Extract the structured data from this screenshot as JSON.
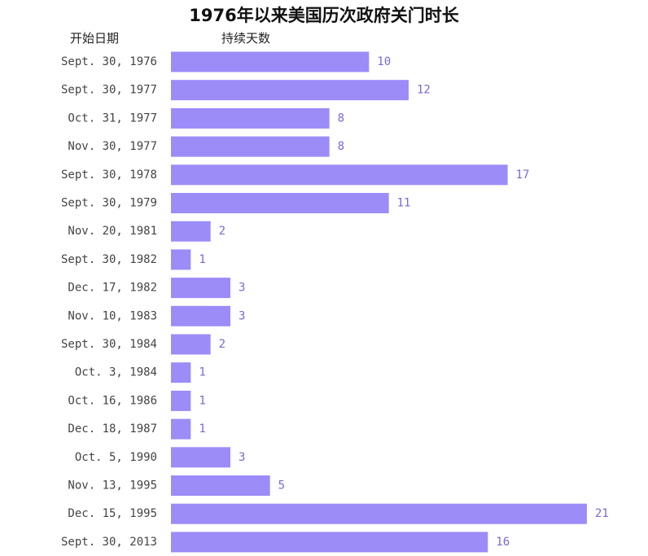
{
  "chart_data": {
    "type": "bar",
    "orientation": "horizontal",
    "title": "1976年以来美国历次政府关门时长",
    "category_header": "开始日期",
    "value_header": "持续天数",
    "categories": [
      "Sept. 30, 1976",
      "Sept. 30, 1977",
      "Oct. 31, 1977",
      "Nov. 30, 1977",
      "Sept. 30, 1978",
      "Sept. 30, 1979",
      "Nov. 20, 1981",
      "Sept. 30, 1982",
      "Dec. 17, 1982",
      "Nov. 10, 1983",
      "Sept. 30, 1984",
      "Oct. 3, 1984",
      "Oct. 16, 1986",
      "Dec. 18, 1987",
      "Oct. 5, 1990",
      "Nov. 13, 1995",
      "Dec. 15, 1995",
      "Sept. 30, 2013"
    ],
    "values": [
      10,
      12,
      8,
      8,
      17,
      11,
      2,
      1,
      3,
      3,
      2,
      1,
      1,
      1,
      3,
      5,
      21,
      16
    ],
    "grid": false,
    "legend": "none",
    "bar_color": "#9b8cf8",
    "label_color": "#7b68d9"
  }
}
